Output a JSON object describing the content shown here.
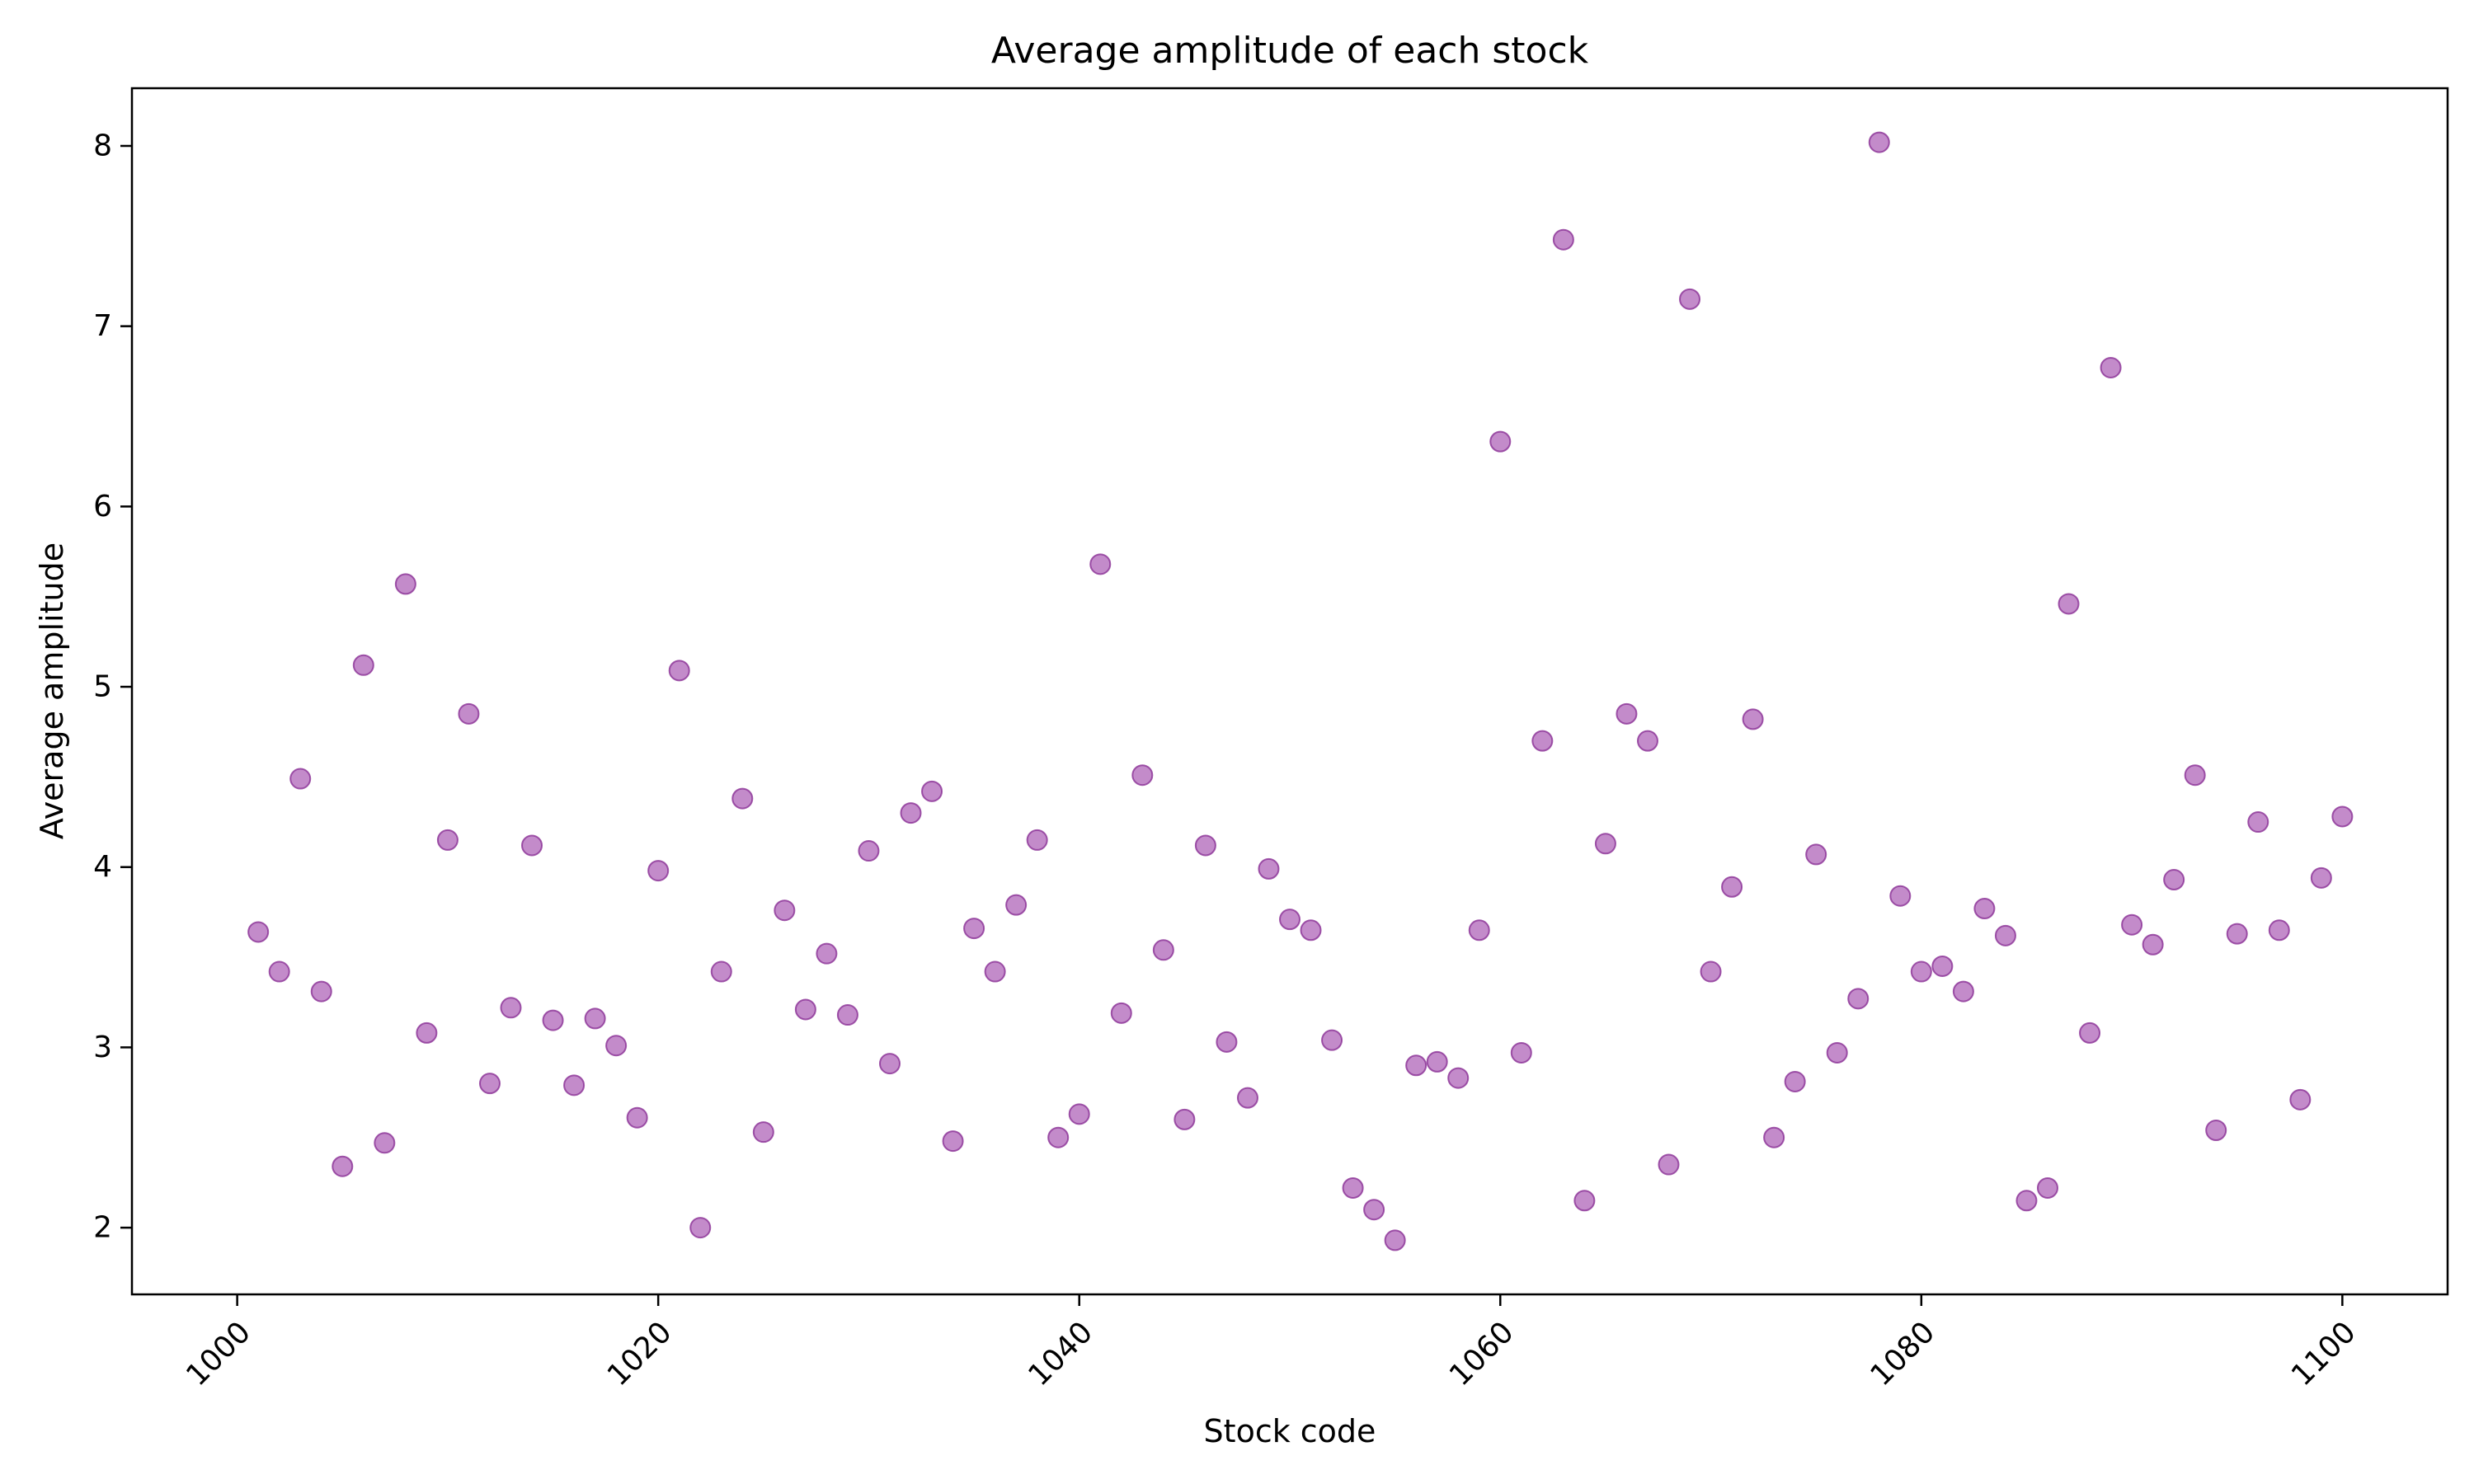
{
  "chart_data": {
    "type": "scatter",
    "title": "Average amplitude of each stock",
    "xlabel": "Stock code",
    "ylabel": "Average amplitude",
    "xlim": [
      995,
      1105
    ],
    "ylim": [
      1.63,
      8.32
    ],
    "xticks": [
      1000,
      1020,
      1040,
      1060,
      1080,
      1100
    ],
    "yticks": [
      2,
      3,
      4,
      5,
      6,
      7,
      8
    ],
    "grid": false,
    "marker_color": "#9b3ea6",
    "marker_edge_color": "#8a2f95",
    "series": [
      {
        "x": [
          1001,
          1002,
          1003,
          1004,
          1005,
          1006,
          1007,
          1008,
          1009,
          1010,
          1011,
          1012,
          1013,
          1014,
          1015,
          1016,
          1017,
          1018,
          1019,
          1020,
          1021,
          1022,
          1023,
          1024,
          1025,
          1026,
          1027,
          1028,
          1029,
          1030,
          1031,
          1032,
          1033,
          1034,
          1035,
          1036,
          1037,
          1038,
          1039,
          1040,
          1041,
          1042,
          1043,
          1044,
          1045,
          1046,
          1047,
          1048,
          1049,
          1050,
          1051,
          1052,
          1053,
          1054,
          1055,
          1056,
          1057,
          1058,
          1059,
          1060,
          1061,
          1062,
          1063,
          1064,
          1065,
          1066,
          1067,
          1068,
          1069,
          1070,
          1071,
          1072,
          1073,
          1074,
          1075,
          1076,
          1077,
          1078,
          1079,
          1080,
          1081,
          1082,
          1083,
          1084,
          1085,
          1086,
          1087,
          1088,
          1089,
          1090,
          1091,
          1092,
          1093,
          1094,
          1095,
          1096,
          1097,
          1098,
          1099,
          1100
        ],
        "y": [
          3.64,
          3.42,
          4.49,
          3.31,
          2.34,
          5.12,
          2.47,
          5.57,
          3.08,
          4.15,
          4.85,
          2.8,
          3.22,
          4.12,
          3.15,
          2.79,
          3.16,
          3.01,
          2.61,
          3.98,
          5.09,
          2.0,
          3.42,
          4.38,
          2.53,
          3.76,
          3.21,
          3.52,
          3.18,
          4.09,
          2.91,
          4.3,
          4.42,
          2.48,
          3.66,
          3.42,
          3.79,
          4.15,
          2.5,
          2.63,
          5.68,
          3.19,
          4.51,
          3.54,
          2.6,
          4.12,
          3.03,
          2.72,
          3.99,
          3.71,
          3.65,
          3.04,
          2.22,
          2.1,
          1.93,
          2.9,
          2.92,
          2.83,
          3.65,
          6.36,
          2.97,
          4.7,
          7.48,
          2.15,
          4.13,
          4.85,
          4.7,
          2.35,
          7.15,
          3.42,
          3.89,
          4.82,
          2.5,
          2.81,
          4.07,
          2.97,
          3.27,
          8.02,
          3.84,
          3.42,
          3.45,
          3.31,
          3.77,
          3.62,
          2.15,
          2.22,
          5.46,
          3.08,
          6.77,
          3.68,
          3.57,
          3.93,
          4.51,
          2.54,
          3.63,
          4.25,
          3.65,
          2.71,
          3.94,
          4.28
        ]
      }
    ]
  }
}
